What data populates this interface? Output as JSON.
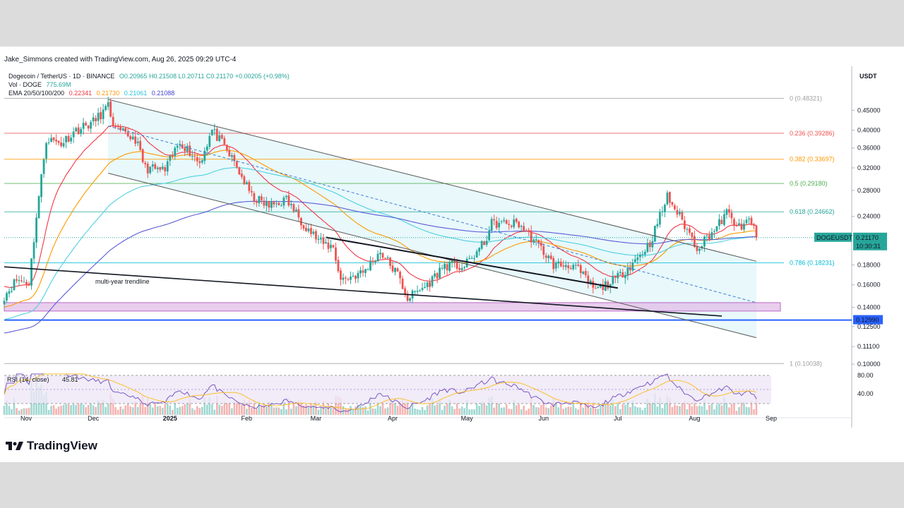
{
  "header": {
    "credit": "Jake_Simmons created with TradingView.com, Aug 26, 2025 09:29 UTC-4",
    "symbol_line": "Dogecoin / TetherUS · 1D · BINANCE",
    "ohlc": "O0.20965 H0.21508 L0.20711 C0.21170 +0.00205 (+0.98%)",
    "vol_label": "Vol · DOGE",
    "vol_value": "775.69M",
    "ema_label": "EMA 20/50/100/200",
    "ema_values": [
      "0.22341",
      "0.21730",
      "0.21061",
      "0.21088"
    ]
  },
  "brand": "TradingView",
  "currency": "USDT",
  "colors": {
    "up": "#26a69a",
    "down": "#ef5350",
    "ema20": "#f23645",
    "ema50": "#ff9800",
    "ema100": "#4dd0e1",
    "ema200": "#5b5bd6",
    "accent": "#2962ff",
    "zone": "#ce93d8"
  },
  "chart_data": {
    "type": "candlestick",
    "title": "Dogecoin / TetherUS · 1D · BINANCE",
    "scale": "log",
    "ylim": [
      0.098,
      0.49
    ],
    "y_ticks": [
      "0.45000",
      "0.40000",
      "0.36000",
      "0.32000",
      "0.28000",
      "0.24000",
      "0.18000",
      "0.16000",
      "0.14000",
      "0.12500",
      "0.11100",
      "0.10000"
    ],
    "x_ticks": [
      {
        "label": "Nov",
        "date": "2024-11-01"
      },
      {
        "label": "Dec",
        "date": "2024-12-01"
      },
      {
        "label": "2025",
        "date": "2025-01-01"
      },
      {
        "label": "Feb",
        "date": "2025-02-01"
      },
      {
        "label": "Mar",
        "date": "2025-03-01"
      },
      {
        "label": "Apr",
        "date": "2025-04-01"
      },
      {
        "label": "May",
        "date": "2025-05-01"
      },
      {
        "label": "Jun",
        "date": "2025-06-01"
      },
      {
        "label": "Jul",
        "date": "2025-07-01"
      },
      {
        "label": "Aug",
        "date": "2025-08-01"
      },
      {
        "label": "Sep",
        "date": "2025-09-01"
      }
    ],
    "start_date": "2024-10-26",
    "end_date": "2025-08-26",
    "close_anchors": [
      [
        "2024-10-26",
        0.15
      ],
      [
        "2024-10-31",
        0.165
      ],
      [
        "2024-11-05",
        0.162
      ],
      [
        "2024-11-08",
        0.24
      ],
      [
        "2024-11-12",
        0.38
      ],
      [
        "2024-11-18",
        0.37
      ],
      [
        "2024-11-24",
        0.4
      ],
      [
        "2024-12-01",
        0.42
      ],
      [
        "2024-12-07",
        0.46
      ],
      [
        "2024-12-10",
        0.4
      ],
      [
        "2024-12-18",
        0.38
      ],
      [
        "2024-12-22",
        0.32
      ],
      [
        "2024-12-30",
        0.315
      ],
      [
        "2025-01-05",
        0.375
      ],
      [
        "2025-01-13",
        0.33
      ],
      [
        "2025-01-18",
        0.4
      ],
      [
        "2025-01-22",
        0.37
      ],
      [
        "2025-01-27",
        0.33
      ],
      [
        "2025-02-03",
        0.27
      ],
      [
        "2025-02-10",
        0.255
      ],
      [
        "2025-02-17",
        0.265
      ],
      [
        "2025-02-24",
        0.23
      ],
      [
        "2025-03-03",
        0.205
      ],
      [
        "2025-03-08",
        0.2
      ],
      [
        "2025-03-11",
        0.165
      ],
      [
        "2025-03-20",
        0.172
      ],
      [
        "2025-03-27",
        0.195
      ],
      [
        "2025-04-03",
        0.17
      ],
      [
        "2025-04-07",
        0.148
      ],
      [
        "2025-04-15",
        0.16
      ],
      [
        "2025-04-22",
        0.18
      ],
      [
        "2025-04-30",
        0.178
      ],
      [
        "2025-05-08",
        0.205
      ],
      [
        "2025-05-11",
        0.23
      ],
      [
        "2025-05-22",
        0.23
      ],
      [
        "2025-06-01",
        0.195
      ],
      [
        "2025-06-05",
        0.18
      ],
      [
        "2025-06-13",
        0.18
      ],
      [
        "2025-06-22",
        0.155
      ],
      [
        "2025-06-30",
        0.165
      ],
      [
        "2025-07-08",
        0.185
      ],
      [
        "2025-07-14",
        0.205
      ],
      [
        "2025-07-21",
        0.27
      ],
      [
        "2025-07-26",
        0.24
      ],
      [
        "2025-08-02",
        0.2
      ],
      [
        "2025-08-10",
        0.225
      ],
      [
        "2025-08-14",
        0.245
      ],
      [
        "2025-08-20",
        0.22
      ],
      [
        "2025-08-23",
        0.24
      ],
      [
        "2025-08-26",
        0.2117
      ]
    ],
    "ema": [
      {
        "name": "EMA 20",
        "last": 0.22341
      },
      {
        "name": "EMA 50",
        "last": 0.2173
      },
      {
        "name": "EMA 100",
        "last": 0.21061
      },
      {
        "name": "EMA 200",
        "last": 0.21088
      }
    ],
    "fib_levels": [
      {
        "label": "0 (0.48321)",
        "value": 0.48321,
        "color": "#9e9e9e"
      },
      {
        "label": "0.236 (0.39286)",
        "value": 0.39286,
        "color": "#ef5350"
      },
      {
        "label": "0.382 (0.33697)",
        "value": 0.33697,
        "color": "#ff9800"
      },
      {
        "label": "0.5 (0.29180)",
        "value": 0.2918,
        "color": "#4caf50"
      },
      {
        "label": "0.618 (0.24662)",
        "value": 0.24662,
        "color": "#26a69a"
      },
      {
        "label": "0.786 (0.18231)",
        "value": 0.18231,
        "color": "#00bcd4"
      },
      {
        "label": "1 (0.10038)",
        "value": 0.10038,
        "color": "#9e9e9e"
      }
    ],
    "annotations": {
      "trendline_label": "multi-year trendline",
      "support_price": "0.12990",
      "support_value": 0.1299,
      "support_zone": [
        0.137,
        0.144
      ],
      "price_tag_symbol": "DOGEUSDT",
      "price_tag_value": "0.21170",
      "price_tag_countdown": "10:30:31"
    },
    "rsi": {
      "label": "RSI (14, close)",
      "value": "45.81",
      "ticks": [
        "80.00",
        "40.00"
      ]
    }
  }
}
